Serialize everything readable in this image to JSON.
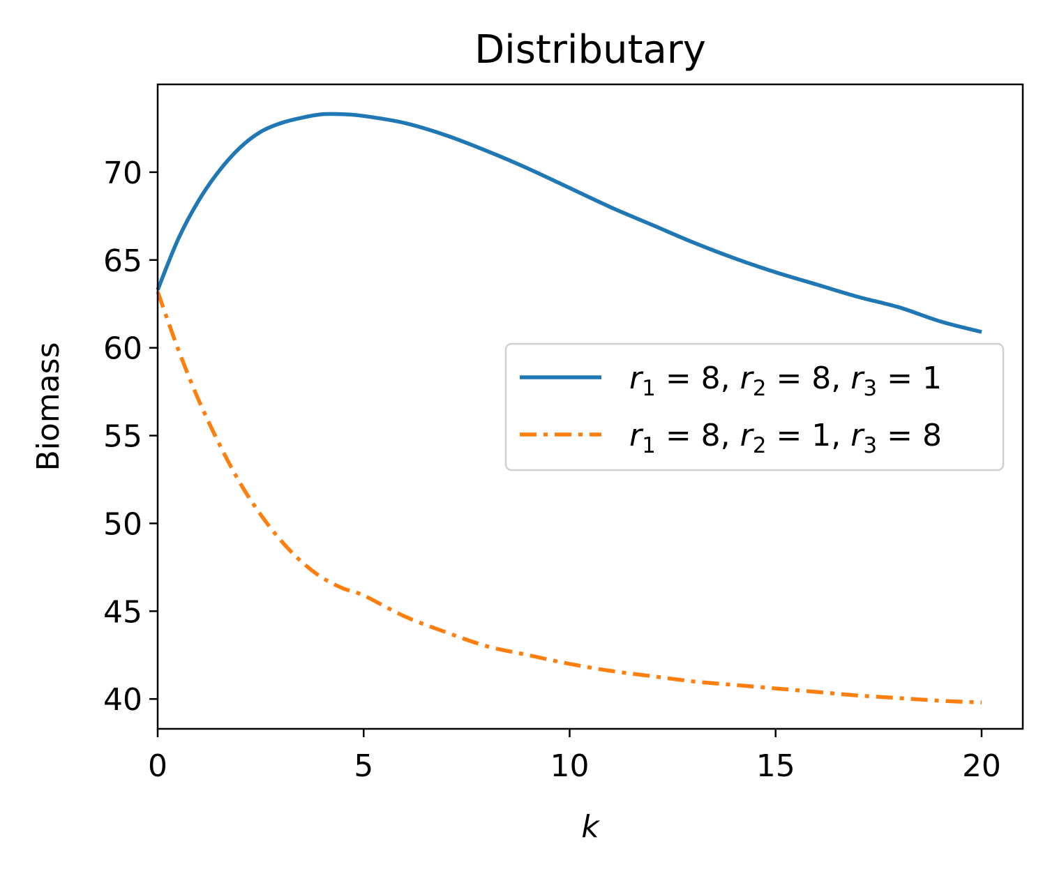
{
  "chart_data": {
    "type": "line",
    "title": "Distributary",
    "xlabel": "k",
    "ylabel": "Biomass",
    "xlim": [
      0,
      21
    ],
    "ylim": [
      38.3,
      75.0
    ],
    "xticks": [
      0,
      5,
      10,
      15,
      20
    ],
    "yticks": [
      40,
      45,
      50,
      55,
      60,
      65,
      70
    ],
    "grid": false,
    "legend_position": "center-right",
    "x": [
      0,
      0.5,
      1,
      1.5,
      2,
      2.5,
      3,
      3.5,
      4,
      4.5,
      5,
      6,
      7,
      8,
      9,
      10,
      11,
      12,
      13,
      14,
      15,
      16,
      17,
      18,
      19,
      20
    ],
    "series": [
      {
        "name_parts": [
          {
            "t": "r",
            "i": true
          },
          {
            "t": "1",
            "sub": true
          },
          {
            "t": " = 8, "
          },
          {
            "t": "r",
            "i": true
          },
          {
            "t": "2",
            "sub": true
          },
          {
            "t": " = 8, "
          },
          {
            "t": "r",
            "i": true
          },
          {
            "t": "3",
            "sub": true
          },
          {
            "t": " = 1"
          }
        ],
        "color": "#1f77b4",
        "style": "solid",
        "values": [
          63.3,
          66.2,
          68.4,
          70.1,
          71.4,
          72.3,
          72.8,
          73.1,
          73.3,
          73.3,
          73.2,
          72.8,
          72.1,
          71.2,
          70.2,
          69.1,
          68.0,
          67.0,
          66.0,
          65.1,
          64.3,
          63.6,
          62.9,
          62.3,
          61.5,
          60.9
        ]
      },
      {
        "name_parts": [
          {
            "t": "r",
            "i": true
          },
          {
            "t": "1",
            "sub": true
          },
          {
            "t": " = 8, "
          },
          {
            "t": "r",
            "i": true
          },
          {
            "t": "2",
            "sub": true
          },
          {
            "t": " = 1, "
          },
          {
            "t": "r",
            "i": true
          },
          {
            "t": "3",
            "sub": true
          },
          {
            "t": " = 8"
          }
        ],
        "color": "#ff7f0e",
        "style": "dashdot",
        "values": [
          63.2,
          59.9,
          57.0,
          54.5,
          52.3,
          50.5,
          49.0,
          47.8,
          46.9,
          46.3,
          45.9,
          44.7,
          43.8,
          43.0,
          42.5,
          42.0,
          41.6,
          41.3,
          41.0,
          40.8,
          40.6,
          40.4,
          40.2,
          40.05,
          39.9,
          39.8
        ]
      }
    ]
  }
}
